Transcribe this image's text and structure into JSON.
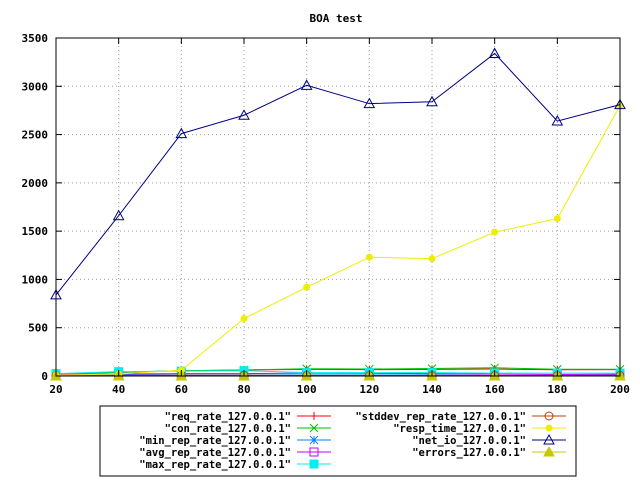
{
  "chart_data": {
    "type": "line",
    "title": "BOA test",
    "xlabel": "",
    "ylabel": "",
    "x": [
      20,
      40,
      60,
      80,
      100,
      120,
      140,
      160,
      180,
      200
    ],
    "xlim": [
      20,
      200
    ],
    "ylim": [
      0,
      3500
    ],
    "xticks": [
      "20",
      "40",
      "60",
      "80",
      "100",
      "120",
      "140",
      "160",
      "180",
      "200"
    ],
    "yticks": [
      "0",
      "500",
      "1000",
      "1500",
      "2000",
      "2500",
      "3000",
      "3500"
    ],
    "grid": true,
    "legend_position": "bottom-center",
    "series": [
      {
        "name": "\"req_rate_127.0.0.1\"",
        "color": "#ff0000",
        "marker": "plus",
        "values": [
          20,
          38,
          55,
          62,
          68,
          66,
          68,
          72,
          65,
          66
        ]
      },
      {
        "name": "\"con_rate_127.0.0.1\"",
        "color": "#00c000",
        "marker": "x",
        "values": [
          20,
          38,
          55,
          62,
          75,
          72,
          78,
          85,
          70,
          70
        ]
      },
      {
        "name": "\"min_rep_rate_127.0.0.1\"",
        "color": "#0080ff",
        "marker": "star",
        "values": [
          10,
          12,
          10,
          10,
          10,
          10,
          10,
          5,
          5,
          10
        ]
      },
      {
        "name": "\"avg_rep_rate_127.0.0.1\"",
        "color": "#c000ff",
        "marker": "square",
        "values": [
          15,
          20,
          25,
          25,
          30,
          28,
          25,
          20,
          15,
          20
        ]
      },
      {
        "name": "\"max_rep_rate_127.0.0.1\"",
        "color": "#00eeee",
        "marker": "filled-square",
        "values": [
          25,
          45,
          50,
          55,
          35,
          35,
          35,
          30,
          30,
          30
        ]
      },
      {
        "name": "\"stddev_rep_rate_127.0.0.1\"",
        "color": "#c04000",
        "marker": "circle",
        "values": [
          3,
          5,
          8,
          8,
          5,
          5,
          5,
          5,
          5,
          5
        ]
      },
      {
        "name": "\"resp_time_127.0.0.1\"",
        "color": "#eeee00",
        "marker": "filled-circle",
        "values": [
          10,
          20,
          60,
          595,
          920,
          1230,
          1215,
          1490,
          1630,
          2800
        ]
      },
      {
        "name": "\"net_io_127.0.0.1\"",
        "color": "#000080",
        "marker": "triangle",
        "values": [
          840,
          1660,
          2510,
          2700,
          3010,
          2820,
          2840,
          3340,
          2640,
          2810
        ]
      },
      {
        "name": "\"errors_127.0.0.1\"",
        "color": "#c8c800",
        "marker": "filled-triangle",
        "values": [
          0,
          0,
          0,
          0,
          0,
          0,
          0,
          0,
          0,
          0
        ]
      }
    ]
  }
}
